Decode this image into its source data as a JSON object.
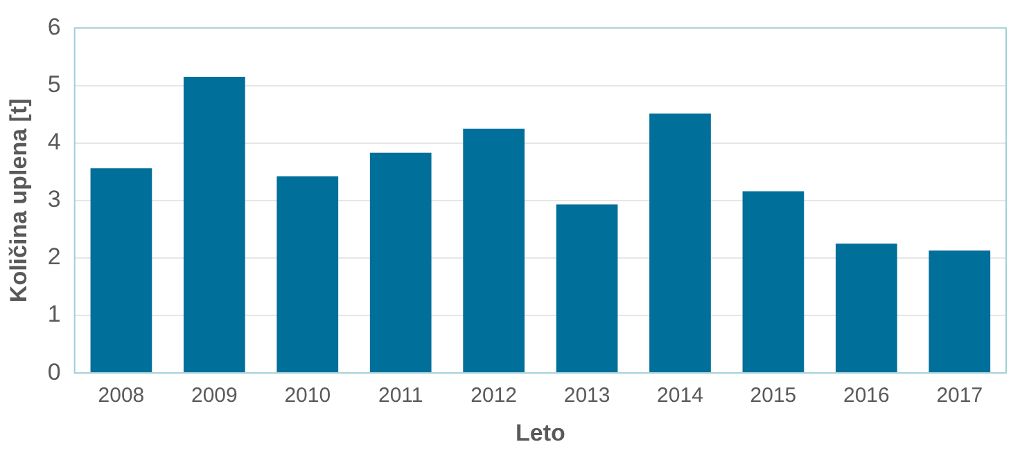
{
  "chart_data": {
    "type": "bar",
    "xlabel": "Leto",
    "ylabel": "Količina uplena [t]",
    "categories": [
      "2008",
      "2009",
      "2010",
      "2011",
      "2012",
      "2013",
      "2014",
      "2015",
      "2016",
      "2017"
    ],
    "values": [
      3.56,
      5.15,
      3.42,
      3.83,
      4.25,
      2.93,
      4.51,
      3.16,
      2.25,
      2.13
    ],
    "color": "#006f9a",
    "ylim": [
      0,
      6
    ],
    "yticks": [
      0,
      1,
      2,
      3,
      4,
      5,
      6
    ],
    "grid": "y",
    "legend": false
  }
}
